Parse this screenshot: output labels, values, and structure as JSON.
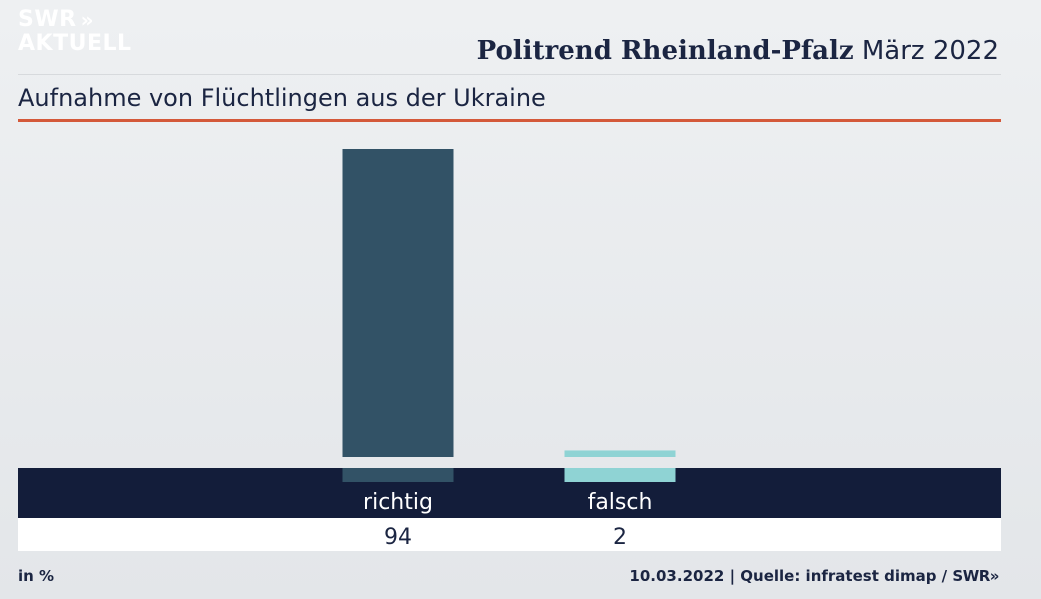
{
  "brand": {
    "logo_line1": "SWR",
    "logo_line2": "AKTUELL",
    "logo_chevrons": "»",
    "footer_logo": "SWR»"
  },
  "header": {
    "title_strong": "Politrend Rheinland-Pfalz",
    "title_month": "März 2022"
  },
  "subtitle": "Aufnahme von Flüchtlingen aus der Ukraine",
  "footer": {
    "unit": "in %",
    "date": "10.03.2022",
    "separator": "|",
    "source": "Quelle: infratest dimap /"
  },
  "colors": {
    "accent_line": "#d4593a",
    "band": "#131d3a",
    "bar_richtig": "#325266",
    "bar_falsch": "#8fd3d4"
  },
  "chart_data": {
    "type": "bar",
    "categories": [
      "richtig",
      "falsch"
    ],
    "values": [
      94,
      2
    ],
    "value_labels": [
      "94",
      "2"
    ],
    "colors": [
      "#325266",
      "#8fd3d4"
    ],
    "ylim": [
      0,
      94
    ],
    "grid": false,
    "title": "Aufnahme von Flüchtlingen aus der Ukraine",
    "xlabel": "",
    "ylabel": ""
  }
}
